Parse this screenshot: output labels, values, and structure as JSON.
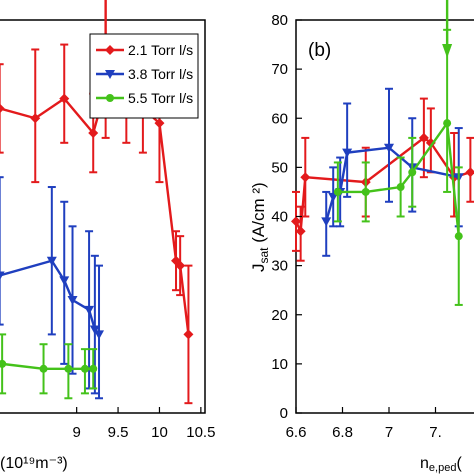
{
  "colors": {
    "red": "#e31a1c",
    "blue": "#1f3fbf",
    "green": "#44c21a"
  },
  "chart_data": [
    {
      "type": "line",
      "panel": "left",
      "xlim": [
        8.05,
        10.55
      ],
      "ylim": [
        0,
        80
      ],
      "xticks": [
        9,
        9.5,
        10,
        10.5
      ],
      "xtick_labels": [
        "9",
        "9.5",
        "10",
        "10.5"
      ],
      "xlabel": "(10¹⁹m⁻³)",
      "legend": {
        "placement": "top-right",
        "entries": [
          "2.1 Torr l/s",
          "3.8 Torr l/s",
          "5.5 Torr l/s"
        ]
      },
      "arrow": {
        "x": 9.35,
        "color": "red"
      },
      "series": [
        {
          "name": "2.1 Torr l/s",
          "color": "red",
          "marker": "diamond",
          "points": [
            {
              "x": 8.07,
              "y": 62,
              "lo": 53,
              "hi": 71
            },
            {
              "x": 8.5,
              "y": 60,
              "lo": 47,
              "hi": 74
            },
            {
              "x": 8.85,
              "y": 64,
              "lo": 55,
              "hi": 75
            },
            {
              "x": 9.2,
              "y": 57,
              "lo": 49,
              "hi": 65
            },
            {
              "x": 9.35,
              "y": 66,
              "lo": 56,
              "hi": 76
            },
            {
              "x": 9.6,
              "y": 62,
              "lo": 55,
              "hi": 71
            },
            {
              "x": 9.8,
              "y": 62,
              "lo": 53,
              "hi": 70
            },
            {
              "x": 10.0,
              "y": 59,
              "lo": 47,
              "hi": 72
            },
            {
              "x": 10.2,
              "y": 31,
              "lo": 25,
              "hi": 37
            },
            {
              "x": 10.25,
              "y": 30,
              "lo": 24,
              "hi": 36
            },
            {
              "x": 10.35,
              "y": 16,
              "lo": 2,
              "hi": 30
            }
          ]
        },
        {
          "name": "3.8 Torr l/s",
          "color": "blue",
          "marker": "triangle-down",
          "points": [
            {
              "x": 8.07,
              "y": 28,
              "lo": 18,
              "hi": 48
            },
            {
              "x": 8.7,
              "y": 31,
              "lo": 16,
              "hi": 46
            },
            {
              "x": 8.85,
              "y": 27,
              "lo": 10,
              "hi": 43
            },
            {
              "x": 8.95,
              "y": 23,
              "lo": 8,
              "hi": 38
            },
            {
              "x": 9.15,
              "y": 21,
              "lo": 5,
              "hi": 37
            },
            {
              "x": 9.22,
              "y": 17,
              "lo": 4,
              "hi": 32
            },
            {
              "x": 9.27,
              "y": 16,
              "lo": 3,
              "hi": 30
            }
          ]
        },
        {
          "name": "5.5 Torr l/s",
          "color": "green",
          "marker": "circle",
          "points": [
            {
              "x": 8.1,
              "y": 10,
              "lo": 4,
              "hi": 16
            },
            {
              "x": 8.6,
              "y": 9,
              "lo": 4,
              "hi": 14
            },
            {
              "x": 8.9,
              "y": 9,
              "lo": 3,
              "hi": 14
            },
            {
              "x": 9.1,
              "y": 9,
              "lo": 4,
              "hi": 13
            },
            {
              "x": 9.2,
              "y": 9,
              "lo": 5,
              "hi": 13
            }
          ]
        }
      ]
    },
    {
      "type": "line",
      "panel": "right",
      "label": "(b)",
      "xlim": [
        6.6,
        7.4
      ],
      "ylim": [
        0,
        80
      ],
      "xticks": [
        6.6,
        6.8,
        7,
        7.2
      ],
      "xtick_labels": [
        "6.6",
        "6.8",
        "7",
        "7."
      ],
      "yticks": [
        0,
        10,
        20,
        30,
        40,
        50,
        60,
        70,
        80
      ],
      "xlabel": "n",
      "xlabel_sub": "e,ped",
      "xlabel_tail": "(",
      "ylabel": "J",
      "ylabel_sub": "sat",
      "ylabel_tail": " (A/cm ²)",
      "arrow": {
        "x": 7.25,
        "color": "green"
      },
      "series": [
        {
          "color": "red",
          "marker": "diamond",
          "points": [
            {
              "x": 6.6,
              "y": 39,
              "lo": 33,
              "hi": 45
            },
            {
              "x": 6.62,
              "y": 37,
              "lo": 31,
              "hi": 42
            },
            {
              "x": 6.64,
              "y": 48,
              "lo": 40,
              "hi": 56
            },
            {
              "x": 6.9,
              "y": 47,
              "lo": 40,
              "hi": 54
            },
            {
              "x": 7.15,
              "y": 56,
              "lo": 48,
              "hi": 64
            },
            {
              "x": 7.18,
              "y": 55,
              "lo": 49,
              "hi": 62
            },
            {
              "x": 7.28,
              "y": 48,
              "lo": 40,
              "hi": 57
            },
            {
              "x": 7.35,
              "y": 49,
              "lo": 43,
              "hi": 56
            }
          ]
        },
        {
          "color": "blue",
          "marker": "triangle-down",
          "points": [
            {
              "x": 6.73,
              "y": 39,
              "lo": 32,
              "hi": 45
            },
            {
              "x": 6.76,
              "y": 44,
              "lo": 38,
              "hi": 50
            },
            {
              "x": 6.79,
              "y": 45,
              "lo": 38,
              "hi": 52
            },
            {
              "x": 6.82,
              "y": 53,
              "lo": 44,
              "hi": 63
            },
            {
              "x": 7.0,
              "y": 54,
              "lo": 43,
              "hi": 66
            },
            {
              "x": 7.1,
              "y": 50,
              "lo": 41,
              "hi": 60
            },
            {
              "x": 7.3,
              "y": 48,
              "lo": 38,
              "hi": 58
            }
          ]
        },
        {
          "color": "green",
          "marker": "circle",
          "points": [
            {
              "x": 6.78,
              "y": 45,
              "lo": 39,
              "hi": 51
            },
            {
              "x": 6.9,
              "y": 45,
              "lo": 39,
              "hi": 51
            },
            {
              "x": 7.05,
              "y": 46,
              "lo": 40,
              "hi": 52
            },
            {
              "x": 7.1,
              "y": 49,
              "lo": 42,
              "hi": 56
            },
            {
              "x": 7.25,
              "y": 59,
              "lo": 45,
              "hi": 78
            },
            {
              "x": 7.3,
              "y": 36,
              "lo": 22,
              "hi": 50
            }
          ]
        }
      ]
    }
  ]
}
